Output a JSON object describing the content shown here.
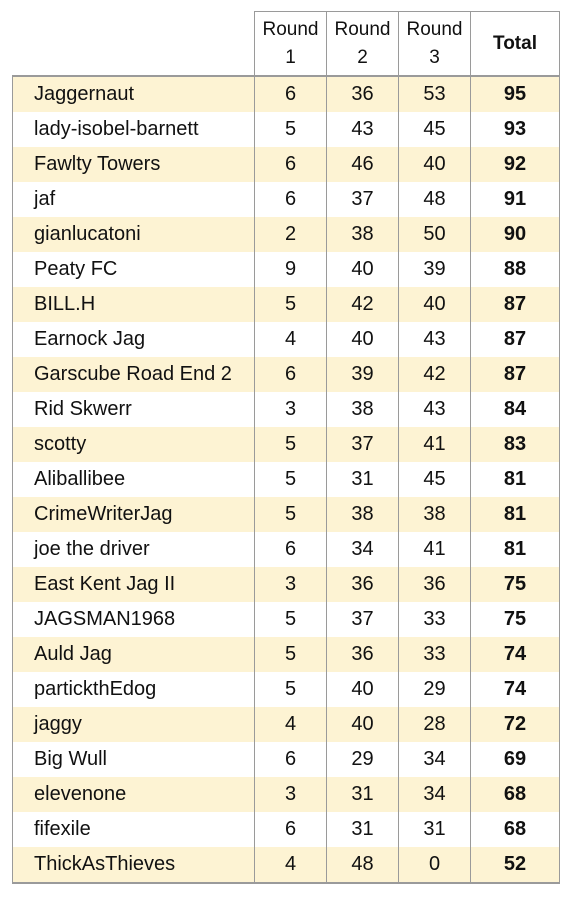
{
  "header": {
    "round1": "Round\n1",
    "round2": "Round\n2",
    "round3": "Round\n3",
    "total": "Total"
  },
  "rows": [
    {
      "name": "Jaggernaut",
      "r1": "6",
      "r2": "36",
      "r3": "53",
      "total": "95"
    },
    {
      "name": "lady-isobel-barnett",
      "r1": "5",
      "r2": "43",
      "r3": "45",
      "total": "93"
    },
    {
      "name": "Fawlty Towers",
      "r1": "6",
      "r2": "46",
      "r3": "40",
      "total": "92"
    },
    {
      "name": "jaf",
      "r1": "6",
      "r2": "37",
      "r3": "48",
      "total": "91"
    },
    {
      "name": "gianlucatoni",
      "r1": "2",
      "r2": "38",
      "r3": "50",
      "total": "90"
    },
    {
      "name": "Peaty FC",
      "r1": "9",
      "r2": "40",
      "r3": "39",
      "total": "88"
    },
    {
      "name": "BILL.H",
      "r1": "5",
      "r2": "42",
      "r3": "40",
      "total": "87"
    },
    {
      "name": "Earnock Jag",
      "r1": "4",
      "r2": "40",
      "r3": "43",
      "total": "87"
    },
    {
      "name": "Garscube Road End 2",
      "r1": "6",
      "r2": "39",
      "r3": "42",
      "total": "87"
    },
    {
      "name": "Rid Skwerr",
      "r1": "3",
      "r2": "38",
      "r3": "43",
      "total": "84"
    },
    {
      "name": "scotty",
      "r1": "5",
      "r2": "37",
      "r3": "41",
      "total": "83"
    },
    {
      "name": "Aliballibee",
      "r1": "5",
      "r2": "31",
      "r3": "45",
      "total": "81"
    },
    {
      "name": "CrimeWriterJag",
      "r1": "5",
      "r2": "38",
      "r3": "38",
      "total": "81"
    },
    {
      "name": "joe the driver",
      "r1": "6",
      "r2": "34",
      "r3": "41",
      "total": "81"
    },
    {
      "name": "East Kent Jag II",
      "r1": "3",
      "r2": "36",
      "r3": "36",
      "total": "75"
    },
    {
      "name": "JAGSMAN1968",
      "r1": "5",
      "r2": "37",
      "r3": "33",
      "total": "75"
    },
    {
      "name": "Auld Jag",
      "r1": "5",
      "r2": "36",
      "r3": "33",
      "total": "74"
    },
    {
      "name": "partickthEdog",
      "r1": "5",
      "r2": "40",
      "r3": "29",
      "total": "74"
    },
    {
      "name": "jaggy",
      "r1": "4",
      "r2": "40",
      "r3": "28",
      "total": "72"
    },
    {
      "name": "Big Wull",
      "r1": "6",
      "r2": "29",
      "r3": "34",
      "total": "69"
    },
    {
      "name": "elevenone",
      "r1": "3",
      "r2": "31",
      "r3": "34",
      "total": "68"
    },
    {
      "name": "fifexile",
      "r1": "6",
      "r2": "31",
      "r3": "31",
      "total": "68"
    },
    {
      "name": "ThickAsThieves",
      "r1": "4",
      "r2": "48",
      "r3": "0",
      "total": "52"
    }
  ],
  "colors": {
    "shade": "#fdf3d3",
    "border": "#9a9a9a"
  }
}
